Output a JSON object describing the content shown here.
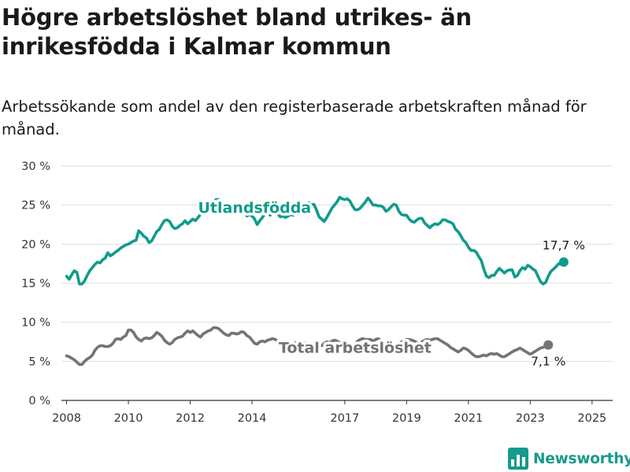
{
  "title": "Högre arbetslöshet bland utrikes- än inrikesfödda i Kalmar kommun",
  "subtitle": "Arbetssökande som andel av den registerbaserade arbetskraften månad för månad.",
  "brand": {
    "name": "Newsworthy",
    "color": "#159a8c"
  },
  "chart_data": {
    "type": "line",
    "ylim": [
      0,
      30
    ],
    "y_ticks": [
      0,
      5,
      10,
      15,
      20,
      25,
      30
    ],
    "y_tick_labels": [
      "0 %",
      "5 %",
      "10 %",
      "15 %",
      "20 %",
      "25 %",
      "30 %"
    ],
    "xlim": [
      "2007-11",
      "2025-09"
    ],
    "x_ticks": [
      "2008",
      "2010",
      "2012",
      "2014",
      "2017",
      "2019",
      "2021",
      "2023",
      "2025"
    ],
    "grid": true,
    "legend": "inline labels",
    "series": [
      {
        "name": "Utlandsfödda",
        "color": "#119b8c",
        "label_position": "2014-02",
        "end_label": "17,7 %",
        "start": "2008-01",
        "values": [
          15.9,
          15.5,
          16.1,
          16.6,
          16.4,
          14.9,
          14.9,
          15.3,
          16.0,
          16.6,
          17.0,
          17.4,
          17.7,
          17.6,
          18.0,
          18.2,
          18.9,
          18.5,
          18.7,
          19.0,
          19.2,
          19.5,
          19.7,
          19.9,
          20.0,
          20.2,
          20.4,
          20.5,
          21.7,
          21.4,
          21.0,
          20.8,
          20.2,
          20.4,
          21.0,
          21.6,
          21.9,
          22.5,
          23.0,
          23.1,
          22.9,
          22.3,
          22.0,
          22.1,
          22.4,
          22.6,
          23.0,
          22.6,
          22.9,
          23.2,
          23.0,
          23.4,
          23.8,
          24.2,
          24.5,
          24.9,
          25.2,
          25.4,
          25.7,
          25.7,
          25.4,
          25.1,
          24.8,
          24.6,
          24.5,
          24.7,
          24.8,
          24.9,
          24.7,
          24.6,
          23.6,
          23.8,
          23.6,
          23.2,
          22.5,
          23.0,
          23.4,
          23.9,
          24.0,
          23.7,
          23.9,
          24.1,
          23.8,
          23.5,
          23.6,
          23.4,
          23.6,
          23.8,
          23.7,
          24.1,
          23.9,
          24.3,
          24.6,
          24.9,
          25.3,
          25.0,
          25.1,
          24.4,
          23.5,
          23.2,
          22.9,
          23.4,
          24.0,
          24.6,
          25.0,
          25.4,
          26.0,
          25.8,
          25.7,
          25.8,
          25.5,
          24.9,
          24.4,
          24.4,
          24.6,
          25.0,
          25.4,
          25.9,
          25.5,
          25.0,
          25.0,
          24.9,
          24.9,
          24.7,
          24.2,
          24.4,
          24.8,
          25.1,
          25.0,
          24.2,
          23.8,
          23.7,
          23.7,
          23.2,
          22.9,
          22.8,
          23.1,
          23.3,
          23.3,
          22.7,
          22.4,
          22.1,
          22.4,
          22.6,
          22.5,
          22.7,
          23.1,
          23.1,
          22.9,
          22.8,
          22.6,
          21.9,
          21.6,
          21.1,
          20.5,
          20.2,
          19.6,
          19.2,
          19.2,
          19.0,
          18.4,
          17.9,
          16.8,
          15.9,
          15.7,
          16.0,
          16.0,
          16.5,
          16.9,
          16.6,
          16.3,
          16.6,
          16.7,
          16.7,
          15.8,
          16.0,
          16.6,
          17.0,
          16.8,
          17.3,
          17.1,
          16.8,
          16.6,
          15.9,
          15.2,
          14.9,
          15.1,
          15.9,
          16.5,
          16.8,
          17.1,
          17.5,
          17.4,
          17.7
        ]
      },
      {
        "name": "Total arbetslöshet",
        "color": "#737378",
        "label_position": "2017-05",
        "end_label": "7,1 %",
        "start": "2008-01",
        "values": [
          5.7,
          5.6,
          5.4,
          5.2,
          4.9,
          4.6,
          4.6,
          5.0,
          5.3,
          5.5,
          5.8,
          6.4,
          6.8,
          7.0,
          7.0,
          6.9,
          6.9,
          7.0,
          7.3,
          7.8,
          7.9,
          7.8,
          8.1,
          8.3,
          9.0,
          9.0,
          8.7,
          8.1,
          7.8,
          7.6,
          7.9,
          8.0,
          7.9,
          8.0,
          8.3,
          8.7,
          8.5,
          8.2,
          7.7,
          7.4,
          7.2,
          7.4,
          7.8,
          8.0,
          8.1,
          8.2,
          8.6,
          8.9,
          8.7,
          8.9,
          8.6,
          8.3,
          8.1,
          8.5,
          8.7,
          8.9,
          9.0,
          9.3,
          9.3,
          9.2,
          8.9,
          8.6,
          8.4,
          8.3,
          8.6,
          8.6,
          8.5,
          8.6,
          8.8,
          8.7,
          8.3,
          8.1,
          7.7,
          7.3,
          7.2,
          7.5,
          7.6,
          7.5,
          7.7,
          7.8,
          7.9,
          7.8,
          7.6,
          7.4,
          7.2,
          6.9,
          6.9,
          7.2,
          7.3,
          7.4,
          7.3,
          7.6,
          7.4,
          7.2,
          6.8,
          6.6,
          6.3,
          6.6,
          6.9,
          7.0,
          7.3,
          7.5,
          7.4,
          7.6,
          7.7,
          7.6,
          7.4,
          7.3,
          7.2,
          7.4,
          7.1,
          7.0,
          7.2,
          7.6,
          7.8,
          7.9,
          7.8,
          7.8,
          7.8,
          7.6,
          7.8,
          7.9,
          7.7,
          7.6,
          7.5,
          7.3,
          7.2,
          7.1,
          7.2,
          7.3,
          7.5,
          7.6,
          7.8,
          7.8,
          7.7,
          7.6,
          7.4,
          7.3,
          7.5,
          7.7,
          7.8,
          7.7,
          7.8,
          7.9,
          7.9,
          7.7,
          7.5,
          7.3,
          7.1,
          6.8,
          6.6,
          6.4,
          6.2,
          6.4,
          6.7,
          6.6,
          6.4,
          6.1,
          5.8,
          5.6,
          5.6,
          5.7,
          5.8,
          5.7,
          5.9,
          6.0,
          5.9,
          6.0,
          5.8,
          5.6,
          5.6,
          5.8,
          6.0,
          6.2,
          6.4,
          6.5,
          6.7,
          6.5,
          6.3,
          6.1,
          5.9,
          6.1,
          6.3,
          6.5,
          6.7,
          6.8,
          6.9,
          7.1
        ]
      }
    ]
  }
}
